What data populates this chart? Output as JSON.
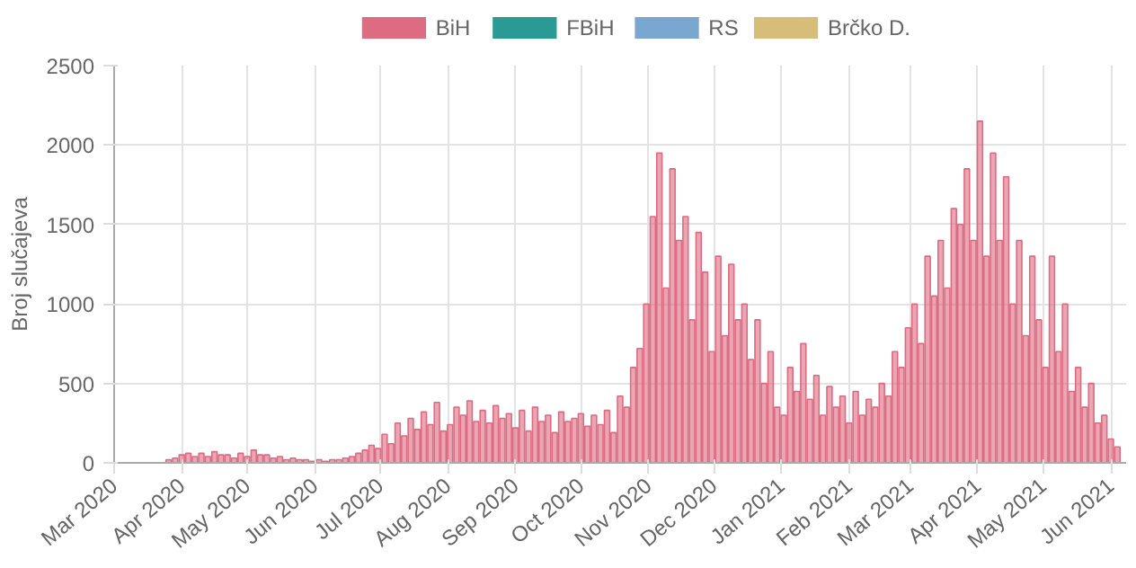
{
  "chart_data": {
    "type": "bar",
    "ylabel": "Broj slučajeva",
    "grid": true,
    "legend": "top",
    "x": [
      "2020-03-26",
      "2020-03-29",
      "2020-04-01",
      "2020-04-04",
      "2020-04-07",
      "2020-04-10",
      "2020-04-13",
      "2020-04-16",
      "2020-04-19",
      "2020-04-22",
      "2020-04-25",
      "2020-04-28",
      "2020-05-01",
      "2020-05-04",
      "2020-05-07",
      "2020-05-10",
      "2020-05-13",
      "2020-05-16",
      "2020-05-19",
      "2020-05-22",
      "2020-05-25",
      "2020-05-28",
      "2020-05-31",
      "2020-06-03",
      "2020-06-06",
      "2020-06-09",
      "2020-06-12",
      "2020-06-15",
      "2020-06-18",
      "2020-06-21",
      "2020-06-24",
      "2020-06-27",
      "2020-06-30",
      "2020-07-03",
      "2020-07-06",
      "2020-07-09",
      "2020-07-12",
      "2020-07-15",
      "2020-07-18",
      "2020-07-21",
      "2020-07-24",
      "2020-07-27",
      "2020-07-30",
      "2020-08-02",
      "2020-08-05",
      "2020-08-08",
      "2020-08-11",
      "2020-08-14",
      "2020-08-17",
      "2020-08-20",
      "2020-08-23",
      "2020-08-26",
      "2020-08-29",
      "2020-09-01",
      "2020-09-04",
      "2020-09-07",
      "2020-09-10",
      "2020-09-13",
      "2020-09-16",
      "2020-09-19",
      "2020-09-22",
      "2020-09-25",
      "2020-09-28",
      "2020-10-01",
      "2020-10-04",
      "2020-10-07",
      "2020-10-10",
      "2020-10-13",
      "2020-10-16",
      "2020-10-19",
      "2020-10-22",
      "2020-10-25",
      "2020-10-28",
      "2020-10-31",
      "2020-11-03",
      "2020-11-06",
      "2020-11-09",
      "2020-11-12",
      "2020-11-15",
      "2020-11-18",
      "2020-11-21",
      "2020-11-24",
      "2020-11-27",
      "2020-11-30",
      "2020-12-03",
      "2020-12-06",
      "2020-12-09",
      "2020-12-12",
      "2020-12-15",
      "2020-12-18",
      "2020-12-21",
      "2020-12-24",
      "2020-12-27",
      "2020-12-30",
      "2021-01-02",
      "2021-01-05",
      "2021-01-08",
      "2021-01-11",
      "2021-01-14",
      "2021-01-17",
      "2021-01-20",
      "2021-01-23",
      "2021-01-26",
      "2021-01-29",
      "2021-02-01",
      "2021-02-04",
      "2021-02-07",
      "2021-02-10",
      "2021-02-13",
      "2021-02-16",
      "2021-02-19",
      "2021-02-22",
      "2021-02-25",
      "2021-02-28",
      "2021-03-03",
      "2021-03-06",
      "2021-03-09",
      "2021-03-12",
      "2021-03-15",
      "2021-03-18",
      "2021-03-21",
      "2021-03-24",
      "2021-03-27",
      "2021-03-30",
      "2021-04-02",
      "2021-04-05",
      "2021-04-08",
      "2021-04-11",
      "2021-04-14",
      "2021-04-17",
      "2021-04-20",
      "2021-04-23",
      "2021-04-26",
      "2021-04-29",
      "2021-05-02",
      "2021-05-05",
      "2021-05-08",
      "2021-05-11",
      "2021-05-14",
      "2021-05-17",
      "2021-05-20",
      "2021-05-23",
      "2021-05-26",
      "2021-05-29",
      "2021-06-01",
      "2021-06-04"
    ],
    "series": [
      {
        "name": "BiH",
        "color": "#dd6b82",
        "values": [
          20,
          30,
          50,
          60,
          40,
          60,
          40,
          70,
          50,
          50,
          30,
          60,
          40,
          80,
          50,
          50,
          30,
          40,
          20,
          30,
          20,
          20,
          10,
          20,
          10,
          20,
          20,
          30,
          40,
          60,
          80,
          110,
          90,
          180,
          120,
          250,
          170,
          280,
          210,
          320,
          240,
          380,
          200,
          240,
          350,
          300,
          390,
          260,
          330,
          250,
          360,
          280,
          310,
          220,
          330,
          200,
          350,
          260,
          300,
          190,
          320,
          260,
          280,
          310,
          230,
          300,
          240,
          330,
          190,
          420,
          350,
          600,
          720,
          1000,
          1550,
          1950,
          1100,
          1850,
          1400,
          1550,
          900,
          1450,
          1200,
          700,
          1300,
          800,
          1250,
          900,
          1000,
          650,
          900,
          500,
          700,
          350,
          300,
          600,
          450,
          750,
          400,
          550,
          300,
          480,
          350,
          420,
          250,
          450,
          300,
          400,
          350,
          500,
          420,
          700,
          600,
          850,
          1000,
          750,
          1300,
          1050,
          1400,
          1100,
          1600,
          1500,
          1850,
          1400,
          2150,
          1300,
          1950,
          1400,
          1800,
          1000,
          1400,
          800,
          1300,
          900,
          600,
          1300,
          700,
          1000,
          450,
          600,
          350,
          500,
          250,
          300,
          150,
          100
        ]
      },
      {
        "name": "FBiH",
        "color": "#2a9a92",
        "values": [
          null,
          null,
          null,
          null,
          null,
          null,
          null,
          null,
          null,
          null,
          null,
          null,
          null,
          null,
          null,
          null,
          null,
          null,
          null,
          null,
          null,
          null,
          null,
          null,
          null,
          null,
          null,
          null,
          null,
          null,
          null,
          null,
          null,
          null,
          null,
          null,
          null,
          null,
          null,
          null,
          null,
          null,
          null,
          null,
          null,
          null,
          null,
          null,
          null,
          null,
          null,
          null,
          null,
          null,
          null,
          null,
          null,
          null,
          null,
          null,
          null,
          null,
          null,
          null,
          null,
          null,
          null,
          null,
          null,
          null,
          null,
          null,
          null,
          null,
          null,
          null,
          null,
          null,
          null,
          null,
          null,
          null,
          null,
          null,
          null,
          null,
          null,
          null,
          null,
          null,
          null,
          null,
          null,
          null,
          null,
          null,
          null,
          null,
          null,
          null,
          null,
          null,
          null,
          null,
          null,
          null,
          null,
          null,
          null,
          null,
          null,
          null,
          null,
          null,
          null,
          null,
          null,
          null,
          null,
          null,
          null,
          null,
          null,
          null,
          null,
          null,
          null,
          null,
          null,
          null,
          null,
          null,
          null,
          null,
          null,
          null,
          null,
          null,
          null,
          null,
          null,
          null,
          null,
          null,
          null,
          null
        ]
      },
      {
        "name": "RS",
        "color": "#7aa7cf",
        "values": [
          null,
          null,
          null,
          null,
          null,
          null,
          null,
          null,
          null,
          null,
          null,
          null,
          null,
          null,
          null,
          null,
          null,
          null,
          null,
          null,
          null,
          null,
          null,
          null,
          null,
          null,
          null,
          null,
          null,
          null,
          null,
          null,
          null,
          null,
          null,
          null,
          null,
          null,
          null,
          null,
          null,
          null,
          null,
          null,
          null,
          null,
          null,
          null,
          null,
          null,
          null,
          null,
          null,
          null,
          null,
          null,
          null,
          null,
          null,
          null,
          null,
          null,
          null,
          null,
          null,
          null,
          null,
          null,
          null,
          null,
          null,
          null,
          null,
          null,
          null,
          null,
          null,
          null,
          null,
          null,
          null,
          null,
          null,
          null,
          null,
          null,
          null,
          null,
          null,
          null,
          null,
          null,
          null,
          null,
          null,
          null,
          null,
          null,
          null,
          null,
          null,
          null,
          null,
          null,
          null,
          null,
          null,
          null,
          null,
          null,
          null,
          null,
          null,
          null,
          null,
          null,
          null,
          null,
          null,
          null,
          null,
          null,
          null,
          null,
          null,
          null,
          null,
          null,
          null,
          null,
          null,
          null,
          null,
          null,
          null,
          null,
          null,
          null,
          null,
          null,
          null,
          null,
          null,
          null,
          null,
          null
        ]
      },
      {
        "name": "Brčko D.",
        "color": "#d7bd7a",
        "values": [
          null,
          null,
          null,
          null,
          null,
          null,
          null,
          null,
          null,
          null,
          null,
          null,
          null,
          null,
          null,
          null,
          null,
          null,
          null,
          null,
          null,
          null,
          null,
          null,
          null,
          null,
          null,
          null,
          null,
          null,
          null,
          null,
          null,
          null,
          null,
          null,
          null,
          null,
          null,
          null,
          null,
          null,
          null,
          null,
          null,
          null,
          null,
          null,
          null,
          null,
          null,
          null,
          null,
          null,
          null,
          null,
          null,
          null,
          null,
          null,
          null,
          null,
          null,
          null,
          null,
          null,
          null,
          null,
          null,
          null,
          null,
          null,
          null,
          null,
          null,
          null,
          null,
          null,
          null,
          null,
          null,
          null,
          null,
          null,
          null,
          null,
          null,
          null,
          null,
          null,
          null,
          null,
          null,
          null,
          null,
          null,
          null,
          null,
          null,
          null,
          null,
          null,
          null,
          null,
          null,
          null,
          null,
          null,
          null,
          null,
          null,
          null,
          null,
          null,
          null,
          null,
          null,
          null,
          null,
          null,
          null,
          null,
          null,
          null,
          null,
          null,
          null,
          null,
          null,
          null,
          null,
          null,
          null,
          null,
          null,
          null,
          null,
          null,
          null,
          null,
          null,
          null,
          null,
          null,
          null,
          null
        ]
      }
    ],
    "xlim": [
      "2020-03-01",
      "2021-06-08"
    ],
    "xticks": [
      {
        "value": "2020-03-01",
        "label": "Mar 2020"
      },
      {
        "value": "2020-04-01",
        "label": "Apr 2020"
      },
      {
        "value": "2020-05-01",
        "label": "May 2020"
      },
      {
        "value": "2020-06-01",
        "label": "Jun 2020"
      },
      {
        "value": "2020-07-01",
        "label": "Jul 2020"
      },
      {
        "value": "2020-08-01",
        "label": "Aug 2020"
      },
      {
        "value": "2020-09-01",
        "label": "Sep 2020"
      },
      {
        "value": "2020-10-01",
        "label": "Oct 2020"
      },
      {
        "value": "2020-11-01",
        "label": "Nov 2020"
      },
      {
        "value": "2020-12-01",
        "label": "Dec 2020"
      },
      {
        "value": "2021-01-01",
        "label": "Jan 2021"
      },
      {
        "value": "2021-02-01",
        "label": "Feb 2021"
      },
      {
        "value": "2021-03-01",
        "label": "Mar 2021"
      },
      {
        "value": "2021-04-01",
        "label": "Apr 2021"
      },
      {
        "value": "2021-05-01",
        "label": "May 2021"
      },
      {
        "value": "2021-06-01",
        "label": "Jun 2021"
      }
    ],
    "ylim": [
      0,
      2500
    ],
    "yticks": [
      0,
      500,
      1000,
      1500,
      2000,
      2500
    ]
  }
}
